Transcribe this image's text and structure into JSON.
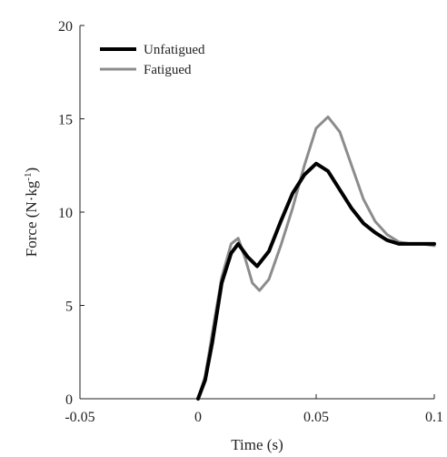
{
  "chart_data": {
    "type": "line",
    "xlabel": "Time (s)",
    "ylabel_main": "Force (N·kg",
    "ylabel_sup": "-1",
    "ylabel_close": ")",
    "xlim": [
      -0.05,
      0.1
    ],
    "ylim": [
      0,
      20
    ],
    "xticks": [
      -0.05,
      0,
      0.05,
      0.1
    ],
    "xtick_labels": [
      "-0.05",
      "0",
      "0.05",
      "0.1"
    ],
    "yticks": [
      0,
      5,
      10,
      15,
      20
    ],
    "ytick_labels": [
      "0",
      "5",
      "10",
      "15",
      "20"
    ],
    "grid": false,
    "legend_position": "top-left",
    "series": [
      {
        "name": "Unfatigued",
        "color": "#000000",
        "width": 4,
        "x": [
          0,
          0.003,
          0.006,
          0.01,
          0.014,
          0.017,
          0.021,
          0.025,
          0.03,
          0.035,
          0.04,
          0.045,
          0.05,
          0.055,
          0.06,
          0.065,
          0.07,
          0.075,
          0.08,
          0.085,
          0.09,
          0.095,
          0.1
        ],
        "y": [
          0,
          1,
          3,
          6.2,
          7.8,
          8.3,
          7.6,
          7.1,
          7.9,
          9.5,
          11,
          12,
          12.6,
          12.2,
          11.2,
          10.2,
          9.4,
          8.9,
          8.5,
          8.3,
          8.3,
          8.3,
          8.3
        ]
      },
      {
        "name": "Fatigued",
        "color": "#8c8c8c",
        "width": 3,
        "x": [
          0,
          0.003,
          0.006,
          0.01,
          0.014,
          0.017,
          0.02,
          0.023,
          0.026,
          0.03,
          0.035,
          0.04,
          0.045,
          0.05,
          0.055,
          0.06,
          0.065,
          0.07,
          0.075,
          0.08,
          0.085,
          0.09,
          0.095,
          0.1
        ],
        "y": [
          0,
          1.2,
          3.5,
          6.5,
          8.3,
          8.6,
          7.5,
          6.2,
          5.8,
          6.4,
          8.2,
          10.2,
          12.5,
          14.5,
          15.1,
          14.3,
          12.5,
          10.7,
          9.5,
          8.8,
          8.4,
          8.3,
          8.3,
          8.2
        ]
      }
    ]
  }
}
